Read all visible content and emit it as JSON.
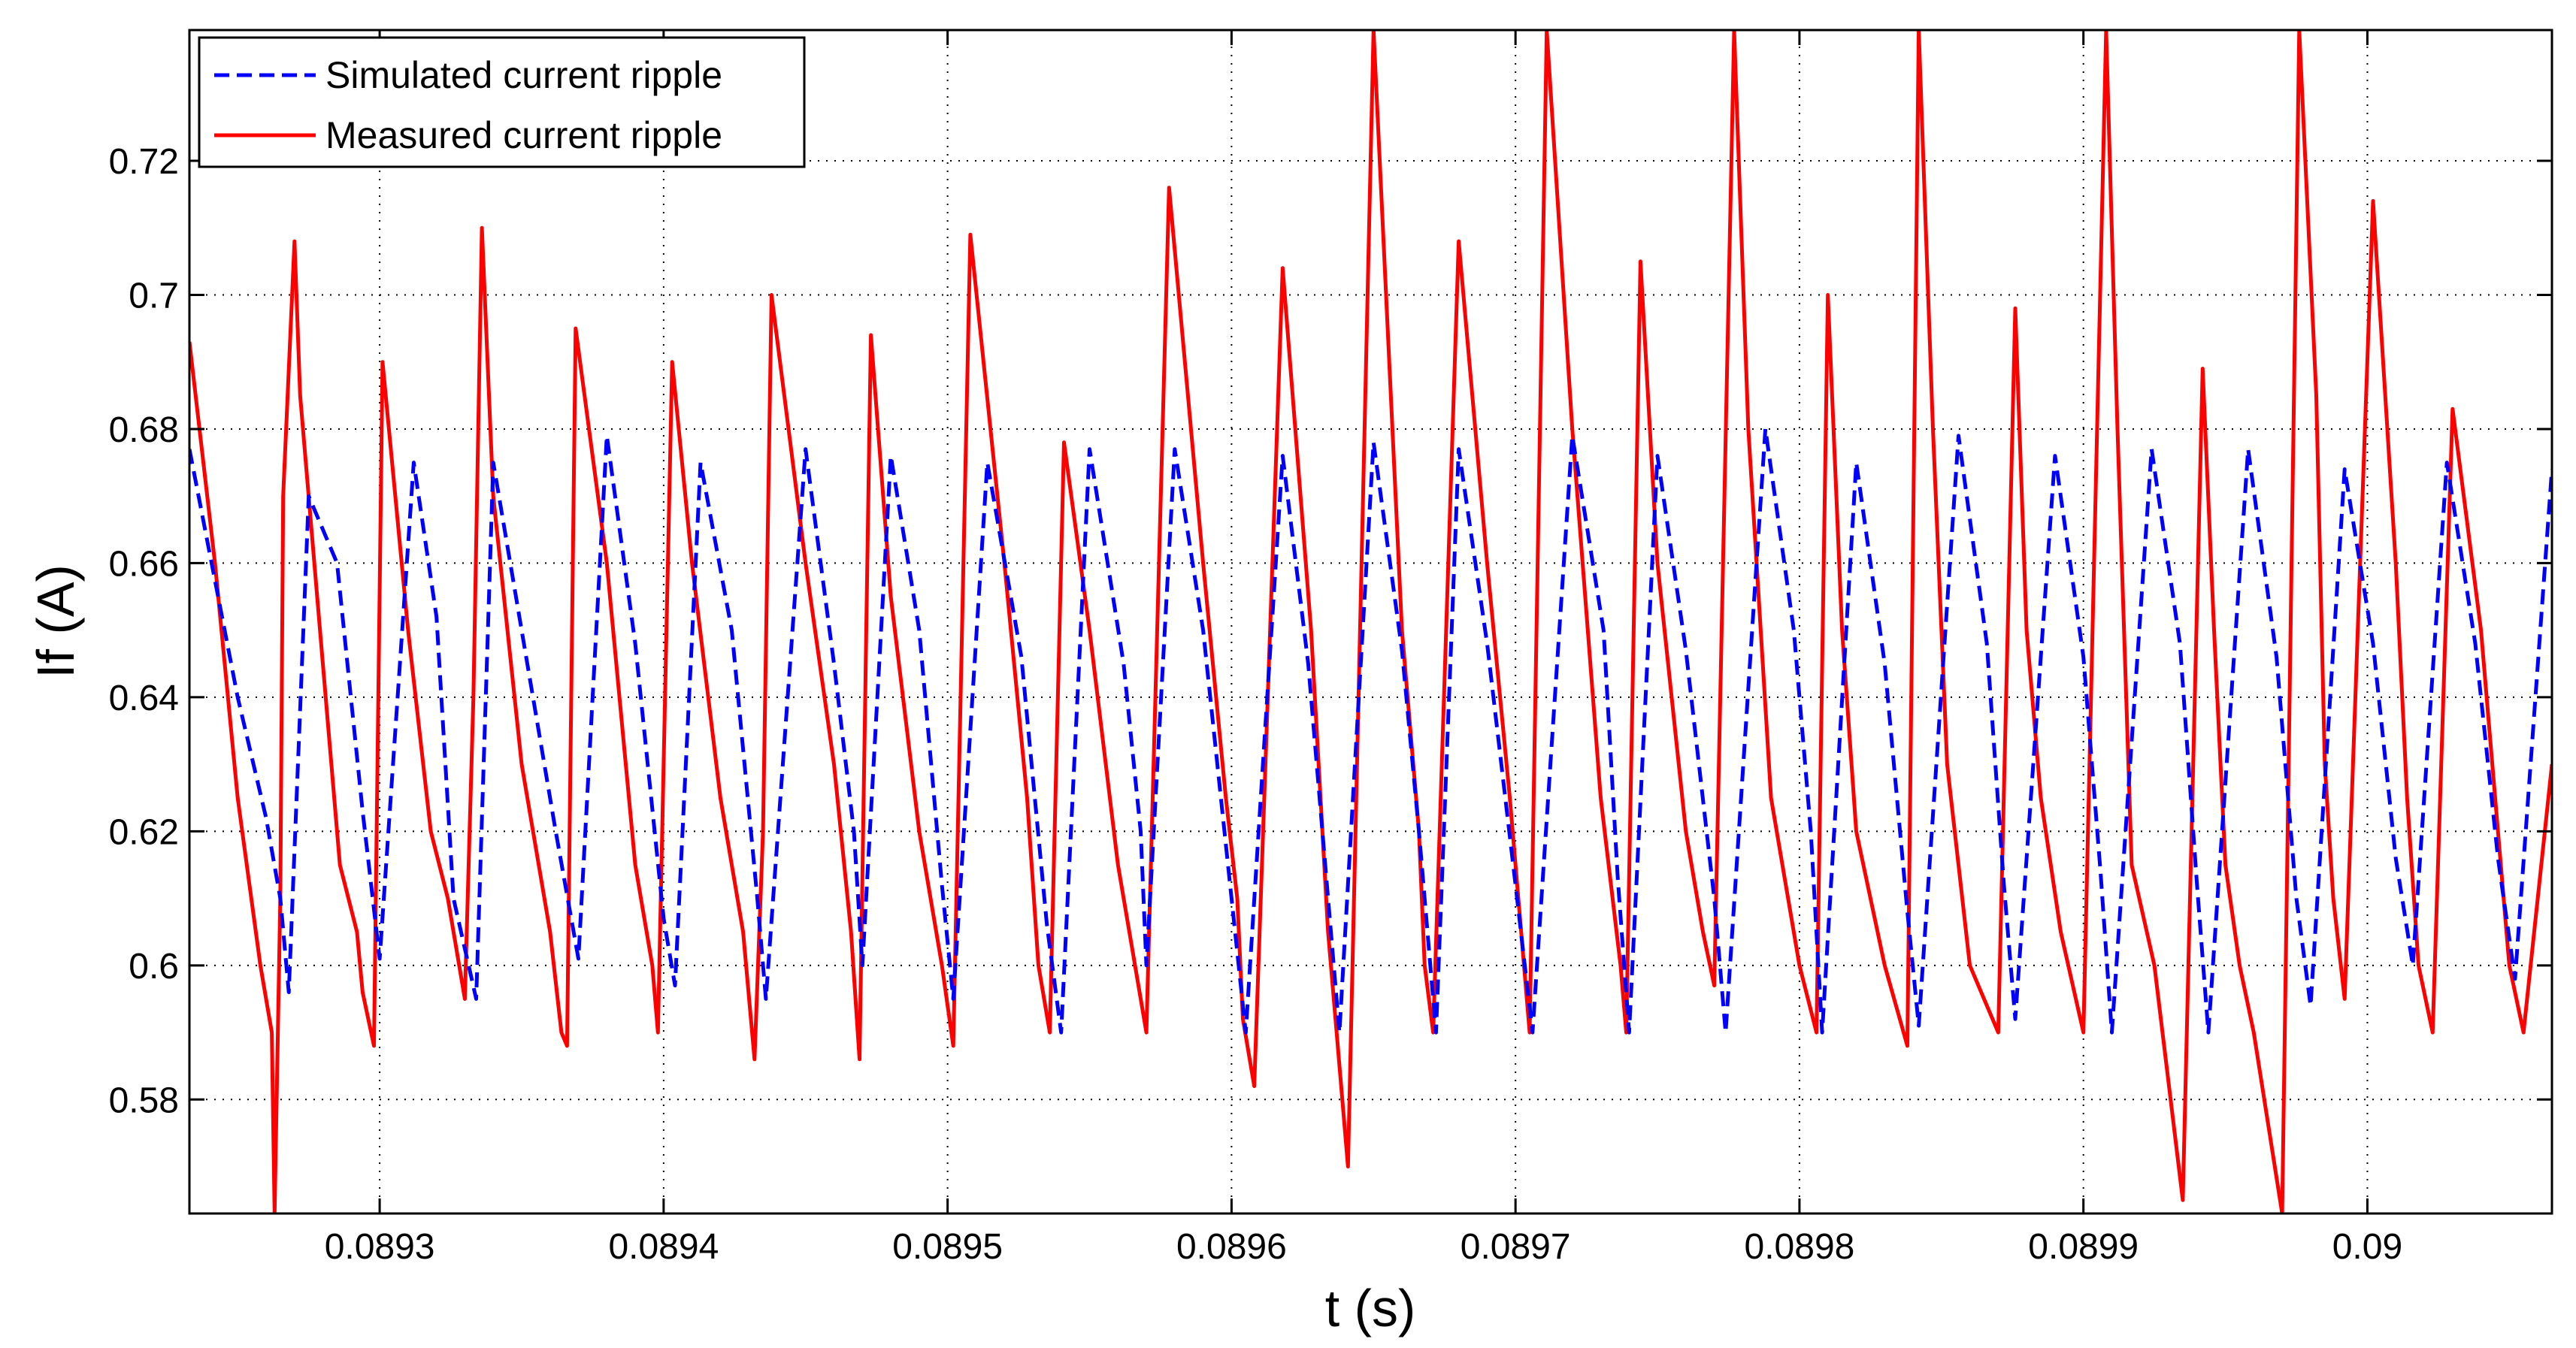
{
  "chart_data": {
    "type": "line",
    "title": "",
    "xlabel": "t (s)",
    "ylabel": "If (A)",
    "xlim": [
      0.089233,
      0.090065
    ],
    "ylim": [
      0.563,
      0.7395
    ],
    "grid": true,
    "legend": "top-left",
    "x_ticks": [
      0.0893,
      0.0894,
      0.0895,
      0.0896,
      0.0897,
      0.0898,
      0.0899,
      0.09
    ],
    "x_tick_labels": [
      "0.0893",
      "0.0894",
      "0.0895",
      "0.0896",
      "0.0897",
      "0.0898",
      "0.0899",
      "0.09"
    ],
    "y_ticks": [
      0.58,
      0.6,
      0.62,
      0.64,
      0.66,
      0.68,
      0.7,
      0.72
    ],
    "y_tick_labels": [
      "0.58",
      "0.6",
      "0.62",
      "0.64",
      "0.66",
      "0.68",
      "0.7",
      "0.72"
    ],
    "series": [
      {
        "name": "Simulated current ripple",
        "color": "#0000ff",
        "style": "dashed",
        "x": [
          0.089233,
          0.08925,
          0.08926,
          0.089265,
          0.089268,
          0.089275,
          0.089285,
          0.089294,
          0.0893,
          0.089312,
          0.08932,
          0.089326,
          0.089334,
          0.08934,
          0.089352,
          0.089362,
          0.08937,
          0.08938,
          0.08939,
          0.0894,
          0.089404,
          0.089413,
          0.089424,
          0.089433,
          0.089436,
          0.08945,
          0.08946,
          0.089467,
          0.08947,
          0.08948,
          0.08949,
          0.089498,
          0.089502,
          0.089514,
          0.089526,
          0.089535,
          0.08954,
          0.08955,
          0.089562,
          0.089568,
          0.08957,
          0.08958,
          0.08959,
          0.0896,
          0.089605,
          0.089618,
          0.089627,
          0.089634,
          0.089638,
          0.08965,
          0.08966,
          0.089666,
          0.089672,
          0.08968,
          0.08969,
          0.0897,
          0.089706,
          0.08972,
          0.089731,
          0.089736,
          0.08974,
          0.08975,
          0.08976,
          0.08977,
          0.089774,
          0.089788,
          0.089798,
          0.089804,
          0.089808,
          0.08982,
          0.08983,
          0.089838,
          0.089842,
          0.089856,
          0.089866,
          0.089872,
          0.089876,
          0.08989,
          0.0899,
          0.089906,
          0.08991,
          0.089924,
          0.089934,
          0.08994,
          0.089944,
          0.089958,
          0.089968,
          0.089975,
          0.08998,
          0.089992,
          0.090002,
          0.09001,
          0.090016,
          0.090028,
          0.090038,
          0.090046,
          0.090052,
          0.090065
        ],
        "values": [
          0.677,
          0.64,
          0.622,
          0.61,
          0.596,
          0.67,
          0.66,
          0.623,
          0.601,
          0.675,
          0.652,
          0.61,
          0.595,
          0.675,
          0.645,
          0.62,
          0.601,
          0.679,
          0.648,
          0.607,
          0.597,
          0.675,
          0.65,
          0.61,
          0.595,
          0.677,
          0.645,
          0.62,
          0.6,
          0.676,
          0.65,
          0.612,
          0.595,
          0.675,
          0.646,
          0.606,
          0.59,
          0.677,
          0.645,
          0.62,
          0.6,
          0.677,
          0.65,
          0.61,
          0.59,
          0.676,
          0.645,
          0.61,
          0.59,
          0.678,
          0.647,
          0.62,
          0.59,
          0.677,
          0.648,
          0.612,
          0.59,
          0.679,
          0.65,
          0.613,
          0.59,
          0.676,
          0.647,
          0.61,
          0.59,
          0.68,
          0.65,
          0.62,
          0.59,
          0.675,
          0.645,
          0.608,
          0.591,
          0.679,
          0.648,
          0.612,
          0.592,
          0.676,
          0.646,
          0.614,
          0.59,
          0.677,
          0.648,
          0.612,
          0.59,
          0.677,
          0.646,
          0.61,
          0.594,
          0.674,
          0.648,
          0.616,
          0.6,
          0.675,
          0.648,
          0.616,
          0.598,
          0.674
        ]
      },
      {
        "name": "Measured current ripple",
        "color": "#ff0000",
        "style": "solid",
        "x": [
          0.089233,
          0.089242,
          0.08925,
          0.089258,
          0.089262,
          0.089263,
          0.089265,
          0.089266,
          0.08927,
          0.089272,
          0.08928,
          0.089286,
          0.089292,
          0.089294,
          0.089298,
          0.089301,
          0.08931,
          0.089318,
          0.089324,
          0.08933,
          0.089333,
          0.089336,
          0.08934,
          0.08935,
          0.08936,
          0.089364,
          0.089366,
          0.089369,
          0.08938,
          0.08939,
          0.089396,
          0.089398,
          0.089403,
          0.08941,
          0.08942,
          0.089428,
          0.089432,
          0.089435,
          0.089438,
          0.08945,
          0.08946,
          0.089466,
          0.089469,
          0.089473,
          0.08948,
          0.08949,
          0.089498,
          0.089502,
          0.089508,
          0.08952,
          0.089528,
          0.089532,
          0.089536,
          0.089541,
          0.08955,
          0.08956,
          0.089566,
          0.08957,
          0.089578,
          0.08959,
          0.089598,
          0.089602,
          0.089604,
          0.089608,
          0.089618,
          0.089628,
          0.089634,
          0.089637,
          0.089641,
          0.08965,
          0.08966,
          0.089666,
          0.089668,
          0.089671,
          0.08968,
          0.08969,
          0.089698,
          0.089702,
          0.089705,
          0.089711,
          0.08972,
          0.08973,
          0.089737,
          0.089739,
          0.089744,
          0.08975,
          0.08976,
          0.089766,
          0.08977,
          0.089777,
          0.089782,
          0.08979,
          0.0898,
          0.089806,
          0.08981,
          0.089815,
          0.08982,
          0.08983,
          0.089838,
          0.089842,
          0.089847,
          0.089852,
          0.08986,
          0.08987,
          0.089876,
          0.08988,
          0.089885,
          0.089892,
          0.0899,
          0.089908,
          0.089912,
          0.089917,
          0.089925,
          0.089935,
          0.089942,
          0.089946,
          0.08995,
          0.089955,
          0.08996,
          0.08997,
          0.089976,
          0.089982,
          0.089985,
          0.089988,
          0.089992,
          0.090002,
          0.09001,
          0.090014,
          0.090018,
          0.090023,
          0.09003,
          0.09004,
          0.090046,
          0.09005,
          0.090055,
          0.090065
        ],
        "values": [
          0.693,
          0.66,
          0.625,
          0.6,
          0.59,
          0.563,
          0.61,
          0.67,
          0.708,
          0.685,
          0.645,
          0.615,
          0.605,
          0.596,
          0.588,
          0.69,
          0.65,
          0.62,
          0.61,
          0.595,
          0.64,
          0.71,
          0.67,
          0.63,
          0.605,
          0.59,
          0.588,
          0.695,
          0.66,
          0.615,
          0.6,
          0.59,
          0.69,
          0.66,
          0.625,
          0.605,
          0.586,
          0.62,
          0.7,
          0.66,
          0.63,
          0.605,
          0.586,
          0.694,
          0.655,
          0.62,
          0.6,
          0.588,
          0.709,
          0.66,
          0.625,
          0.6,
          0.59,
          0.678,
          0.65,
          0.615,
          0.6,
          0.59,
          0.716,
          0.66,
          0.625,
          0.61,
          0.592,
          0.582,
          0.704,
          0.65,
          0.605,
          0.59,
          0.57,
          0.7395,
          0.65,
          0.62,
          0.6,
          0.59,
          0.708,
          0.66,
          0.625,
          0.605,
          0.59,
          0.7395,
          0.68,
          0.625,
          0.6,
          0.59,
          0.705,
          0.66,
          0.62,
          0.605,
          0.597,
          0.7395,
          0.68,
          0.625,
          0.6,
          0.59,
          0.7,
          0.65,
          0.62,
          0.6,
          0.588,
          0.7395,
          0.68,
          0.63,
          0.6,
          0.59,
          0.698,
          0.65,
          0.625,
          0.605,
          0.59,
          0.7395,
          0.68,
          0.615,
          0.6,
          0.565,
          0.689,
          0.65,
          0.615,
          0.6,
          0.59,
          0.563,
          0.7395,
          0.685,
          0.63,
          0.61,
          0.595,
          0.714,
          0.66,
          0.625,
          0.6,
          0.59,
          0.683,
          0.65,
          0.62,
          0.6,
          0.59,
          0.63
        ]
      }
    ]
  }
}
